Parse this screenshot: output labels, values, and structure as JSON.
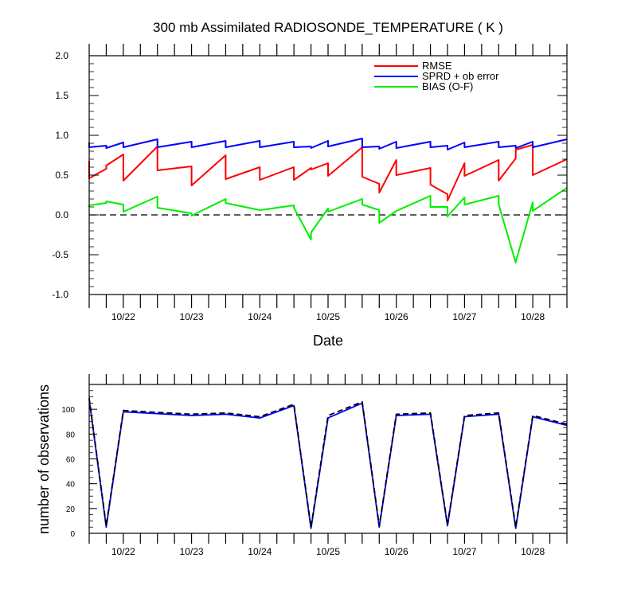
{
  "title": "300 mb Assimilated RADIOSONDE_TEMPERATURE ( K )",
  "chart_data": [
    {
      "type": "line",
      "xlabel": "Date",
      "ylabel": "",
      "xlim": [
        0.5,
        7.5
      ],
      "ylim": [
        -1.0,
        2.0
      ],
      "xticks": [
        1,
        2,
        3,
        4,
        5,
        6,
        7
      ],
      "xtick_labels": [
        "10/22",
        "10/23",
        "10/24",
        "10/25",
        "10/26",
        "10/27",
        "10/28"
      ],
      "yticks": [
        -1.0,
        -0.5,
        0.0,
        0.5,
        1.0,
        1.5,
        2.0
      ],
      "ytick_labels": [
        "-1.0",
        "-0.5",
        "0.0",
        "0.5",
        "1.0",
        "1.5",
        "2.0"
      ],
      "reference_line": {
        "y": 0,
        "style": "dashed",
        "color": "#000000"
      },
      "legend_position": "top-right",
      "series": [
        {
          "name": "RMSE",
          "color": "#ff0000",
          "points": [
            [
              0.5,
              0.68
            ],
            [
              0.5,
              0.46
            ],
            [
              0.75,
              0.58
            ],
            [
              0.75,
              0.62
            ],
            [
              1.0,
              0.76
            ],
            [
              1.0,
              0.43
            ],
            [
              1.5,
              0.86
            ],
            [
              1.5,
              0.56
            ],
            [
              2.0,
              0.61
            ],
            [
              2.0,
              0.37
            ],
            [
              2.5,
              0.75
            ],
            [
              2.5,
              0.45
            ],
            [
              3.0,
              0.6
            ],
            [
              3.0,
              0.44
            ],
            [
              3.5,
              0.6
            ],
            [
              3.5,
              0.44
            ],
            [
              3.75,
              0.59
            ],
            [
              3.75,
              0.57
            ],
            [
              4.0,
              0.65
            ],
            [
              4.0,
              0.49
            ],
            [
              4.5,
              0.85
            ],
            [
              4.5,
              0.48
            ],
            [
              4.75,
              0.39
            ],
            [
              4.75,
              0.28
            ],
            [
              5.0,
              0.69
            ],
            [
              5.0,
              0.5
            ],
            [
              5.5,
              0.59
            ],
            [
              5.5,
              0.38
            ],
            [
              5.75,
              0.26
            ],
            [
              5.75,
              0.18
            ],
            [
              6.0,
              0.65
            ],
            [
              6.0,
              0.49
            ],
            [
              6.5,
              0.69
            ],
            [
              6.5,
              0.43
            ],
            [
              6.75,
              0.71
            ],
            [
              6.75,
              0.82
            ],
            [
              7.0,
              0.88
            ],
            [
              7.0,
              0.5
            ],
            [
              7.5,
              0.7
            ]
          ]
        },
        {
          "name": "SPRD + ob error",
          "color": "#0000ff",
          "points": [
            [
              0.5,
              0.91
            ],
            [
              0.5,
              0.85
            ],
            [
              0.75,
              0.87
            ],
            [
              0.75,
              0.84
            ],
            [
              1.0,
              0.91
            ],
            [
              1.0,
              0.85
            ],
            [
              1.5,
              0.95
            ],
            [
              1.5,
              0.85
            ],
            [
              2.0,
              0.92
            ],
            [
              2.0,
              0.85
            ],
            [
              2.5,
              0.93
            ],
            [
              2.5,
              0.85
            ],
            [
              3.0,
              0.93
            ],
            [
              3.0,
              0.85
            ],
            [
              3.5,
              0.92
            ],
            [
              3.5,
              0.85
            ],
            [
              3.75,
              0.86
            ],
            [
              3.75,
              0.84
            ],
            [
              4.0,
              0.93
            ],
            [
              4.0,
              0.86
            ],
            [
              4.5,
              0.96
            ],
            [
              4.5,
              0.85
            ],
            [
              4.75,
              0.86
            ],
            [
              4.75,
              0.83
            ],
            [
              5.0,
              0.92
            ],
            [
              5.0,
              0.84
            ],
            [
              5.5,
              0.92
            ],
            [
              5.5,
              0.85
            ],
            [
              5.75,
              0.87
            ],
            [
              5.75,
              0.82
            ],
            [
              6.0,
              0.91
            ],
            [
              6.0,
              0.85
            ],
            [
              6.5,
              0.92
            ],
            [
              6.5,
              0.85
            ],
            [
              6.75,
              0.87
            ],
            [
              6.75,
              0.84
            ],
            [
              7.0,
              0.92
            ],
            [
              7.0,
              0.85
            ],
            [
              7.5,
              0.95
            ]
          ]
        },
        {
          "name": "BIAS (O-F)",
          "color": "#00ee00",
          "points": [
            [
              0.5,
              0.1
            ],
            [
              0.5,
              0.12
            ],
            [
              0.75,
              0.15
            ],
            [
              0.75,
              0.17
            ],
            [
              1.0,
              0.13
            ],
            [
              1.0,
              0.04
            ],
            [
              1.5,
              0.23
            ],
            [
              1.5,
              0.09
            ],
            [
              2.0,
              0.02
            ],
            [
              2.0,
              -0.01
            ],
            [
              2.5,
              0.2
            ],
            [
              2.5,
              0.15
            ],
            [
              3.0,
              0.06
            ],
            [
              3.0,
              0.06
            ],
            [
              3.5,
              0.12
            ],
            [
              3.5,
              0.09
            ],
            [
              3.75,
              -0.31
            ],
            [
              3.75,
              -0.22
            ],
            [
              4.0,
              0.08
            ],
            [
              4.0,
              0.04
            ],
            [
              4.5,
              0.2
            ],
            [
              4.5,
              0.13
            ],
            [
              4.75,
              0.06
            ],
            [
              4.75,
              -0.1
            ],
            [
              5.0,
              0.05
            ],
            [
              5.0,
              0.05
            ],
            [
              5.5,
              0.24
            ],
            [
              5.5,
              0.1
            ],
            [
              5.75,
              0.1
            ],
            [
              5.75,
              -0.02
            ],
            [
              6.0,
              0.22
            ],
            [
              6.0,
              0.13
            ],
            [
              6.5,
              0.24
            ],
            [
              6.5,
              0.13
            ],
            [
              6.75,
              -0.6
            ],
            [
              6.75,
              -0.59
            ],
            [
              7.0,
              0.16
            ],
            [
              7.0,
              0.05
            ],
            [
              7.5,
              0.34
            ]
          ]
        }
      ]
    },
    {
      "type": "line",
      "xlabel": "",
      "ylabel": "number of observations",
      "xlim": [
        0.5,
        7.5
      ],
      "ylim": [
        0,
        120
      ],
      "xticks": [
        1,
        2,
        3,
        4,
        5,
        6,
        7
      ],
      "xtick_labels": [
        "10/22",
        "10/23",
        "10/24",
        "10/25",
        "10/26",
        "10/27",
        "10/28"
      ],
      "yticks": [
        0,
        20,
        40,
        60,
        80,
        100
      ],
      "ytick_labels": [
        "0",
        "20",
        "40",
        "60",
        "80",
        "100"
      ],
      "series": [
        {
          "style": "solid",
          "color": "#0000ff",
          "points": [
            [
              0.5,
              108
            ],
            [
              0.75,
              5
            ],
            [
              1.0,
              98
            ],
            [
              2.0,
              95
            ],
            [
              2.5,
              96
            ],
            [
              3.0,
              93
            ],
            [
              3.5,
              103
            ],
            [
              3.75,
              4
            ],
            [
              4.0,
              93
            ],
            [
              4.5,
              105
            ],
            [
              4.75,
              5
            ],
            [
              5.0,
              95
            ],
            [
              5.5,
              96
            ],
            [
              5.75,
              6
            ],
            [
              6.0,
              94
            ],
            [
              6.5,
              96
            ],
            [
              6.75,
              4
            ],
            [
              7.0,
              94
            ],
            [
              7.5,
              87
            ]
          ]
        },
        {
          "style": "dashed",
          "color": "#000000",
          "points": [
            [
              0.5,
              109
            ],
            [
              0.75,
              6
            ],
            [
              1.0,
              99
            ],
            [
              2.0,
              96
            ],
            [
              2.5,
              97
            ],
            [
              3.0,
              94
            ],
            [
              3.5,
              104
            ],
            [
              3.75,
              5
            ],
            [
              4.0,
              95
            ],
            [
              4.5,
              106
            ],
            [
              4.75,
              6
            ],
            [
              5.0,
              96
            ],
            [
              5.5,
              97
            ],
            [
              5.75,
              7
            ],
            [
              6.0,
              95
            ],
            [
              6.5,
              97
            ],
            [
              6.75,
              5
            ],
            [
              7.0,
              95
            ],
            [
              7.5,
              88
            ]
          ]
        }
      ]
    }
  ]
}
